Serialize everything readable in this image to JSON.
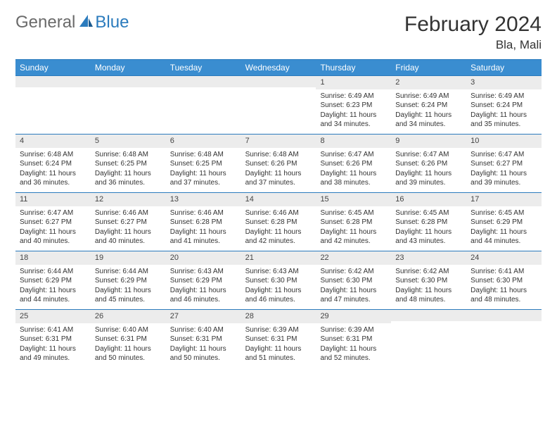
{
  "brand": {
    "word1": "General",
    "word2": "Blue"
  },
  "title": "February 2024",
  "location": "Bla, Mali",
  "colors": {
    "header_bg": "#3a8dd0",
    "border": "#2b7bbd",
    "daynum_bg": "#ececec",
    "logo_gray": "#6a6a6a",
    "logo_blue": "#2b7bbd",
    "text": "#333333",
    "background": "#ffffff"
  },
  "dayNames": [
    "Sunday",
    "Monday",
    "Tuesday",
    "Wednesday",
    "Thursday",
    "Friday",
    "Saturday"
  ],
  "weeks": [
    [
      {
        "n": "",
        "lines": []
      },
      {
        "n": "",
        "lines": []
      },
      {
        "n": "",
        "lines": []
      },
      {
        "n": "",
        "lines": []
      },
      {
        "n": "1",
        "lines": [
          "Sunrise: 6:49 AM",
          "Sunset: 6:23 PM",
          "Daylight: 11 hours",
          "and 34 minutes."
        ]
      },
      {
        "n": "2",
        "lines": [
          "Sunrise: 6:49 AM",
          "Sunset: 6:24 PM",
          "Daylight: 11 hours",
          "and 34 minutes."
        ]
      },
      {
        "n": "3",
        "lines": [
          "Sunrise: 6:49 AM",
          "Sunset: 6:24 PM",
          "Daylight: 11 hours",
          "and 35 minutes."
        ]
      }
    ],
    [
      {
        "n": "4",
        "lines": [
          "Sunrise: 6:48 AM",
          "Sunset: 6:24 PM",
          "Daylight: 11 hours",
          "and 36 minutes."
        ]
      },
      {
        "n": "5",
        "lines": [
          "Sunrise: 6:48 AM",
          "Sunset: 6:25 PM",
          "Daylight: 11 hours",
          "and 36 minutes."
        ]
      },
      {
        "n": "6",
        "lines": [
          "Sunrise: 6:48 AM",
          "Sunset: 6:25 PM",
          "Daylight: 11 hours",
          "and 37 minutes."
        ]
      },
      {
        "n": "7",
        "lines": [
          "Sunrise: 6:48 AM",
          "Sunset: 6:26 PM",
          "Daylight: 11 hours",
          "and 37 minutes."
        ]
      },
      {
        "n": "8",
        "lines": [
          "Sunrise: 6:47 AM",
          "Sunset: 6:26 PM",
          "Daylight: 11 hours",
          "and 38 minutes."
        ]
      },
      {
        "n": "9",
        "lines": [
          "Sunrise: 6:47 AM",
          "Sunset: 6:26 PM",
          "Daylight: 11 hours",
          "and 39 minutes."
        ]
      },
      {
        "n": "10",
        "lines": [
          "Sunrise: 6:47 AM",
          "Sunset: 6:27 PM",
          "Daylight: 11 hours",
          "and 39 minutes."
        ]
      }
    ],
    [
      {
        "n": "11",
        "lines": [
          "Sunrise: 6:47 AM",
          "Sunset: 6:27 PM",
          "Daylight: 11 hours",
          "and 40 minutes."
        ]
      },
      {
        "n": "12",
        "lines": [
          "Sunrise: 6:46 AM",
          "Sunset: 6:27 PM",
          "Daylight: 11 hours",
          "and 40 minutes."
        ]
      },
      {
        "n": "13",
        "lines": [
          "Sunrise: 6:46 AM",
          "Sunset: 6:28 PM",
          "Daylight: 11 hours",
          "and 41 minutes."
        ]
      },
      {
        "n": "14",
        "lines": [
          "Sunrise: 6:46 AM",
          "Sunset: 6:28 PM",
          "Daylight: 11 hours",
          "and 42 minutes."
        ]
      },
      {
        "n": "15",
        "lines": [
          "Sunrise: 6:45 AM",
          "Sunset: 6:28 PM",
          "Daylight: 11 hours",
          "and 42 minutes."
        ]
      },
      {
        "n": "16",
        "lines": [
          "Sunrise: 6:45 AM",
          "Sunset: 6:28 PM",
          "Daylight: 11 hours",
          "and 43 minutes."
        ]
      },
      {
        "n": "17",
        "lines": [
          "Sunrise: 6:45 AM",
          "Sunset: 6:29 PM",
          "Daylight: 11 hours",
          "and 44 minutes."
        ]
      }
    ],
    [
      {
        "n": "18",
        "lines": [
          "Sunrise: 6:44 AM",
          "Sunset: 6:29 PM",
          "Daylight: 11 hours",
          "and 44 minutes."
        ]
      },
      {
        "n": "19",
        "lines": [
          "Sunrise: 6:44 AM",
          "Sunset: 6:29 PM",
          "Daylight: 11 hours",
          "and 45 minutes."
        ]
      },
      {
        "n": "20",
        "lines": [
          "Sunrise: 6:43 AM",
          "Sunset: 6:29 PM",
          "Daylight: 11 hours",
          "and 46 minutes."
        ]
      },
      {
        "n": "21",
        "lines": [
          "Sunrise: 6:43 AM",
          "Sunset: 6:30 PM",
          "Daylight: 11 hours",
          "and 46 minutes."
        ]
      },
      {
        "n": "22",
        "lines": [
          "Sunrise: 6:42 AM",
          "Sunset: 6:30 PM",
          "Daylight: 11 hours",
          "and 47 minutes."
        ]
      },
      {
        "n": "23",
        "lines": [
          "Sunrise: 6:42 AM",
          "Sunset: 6:30 PM",
          "Daylight: 11 hours",
          "and 48 minutes."
        ]
      },
      {
        "n": "24",
        "lines": [
          "Sunrise: 6:41 AM",
          "Sunset: 6:30 PM",
          "Daylight: 11 hours",
          "and 48 minutes."
        ]
      }
    ],
    [
      {
        "n": "25",
        "lines": [
          "Sunrise: 6:41 AM",
          "Sunset: 6:31 PM",
          "Daylight: 11 hours",
          "and 49 minutes."
        ]
      },
      {
        "n": "26",
        "lines": [
          "Sunrise: 6:40 AM",
          "Sunset: 6:31 PM",
          "Daylight: 11 hours",
          "and 50 minutes."
        ]
      },
      {
        "n": "27",
        "lines": [
          "Sunrise: 6:40 AM",
          "Sunset: 6:31 PM",
          "Daylight: 11 hours",
          "and 50 minutes."
        ]
      },
      {
        "n": "28",
        "lines": [
          "Sunrise: 6:39 AM",
          "Sunset: 6:31 PM",
          "Daylight: 11 hours",
          "and 51 minutes."
        ]
      },
      {
        "n": "29",
        "lines": [
          "Sunrise: 6:39 AM",
          "Sunset: 6:31 PM",
          "Daylight: 11 hours",
          "and 52 minutes."
        ]
      },
      {
        "n": "",
        "lines": []
      },
      {
        "n": "",
        "lines": []
      }
    ]
  ]
}
